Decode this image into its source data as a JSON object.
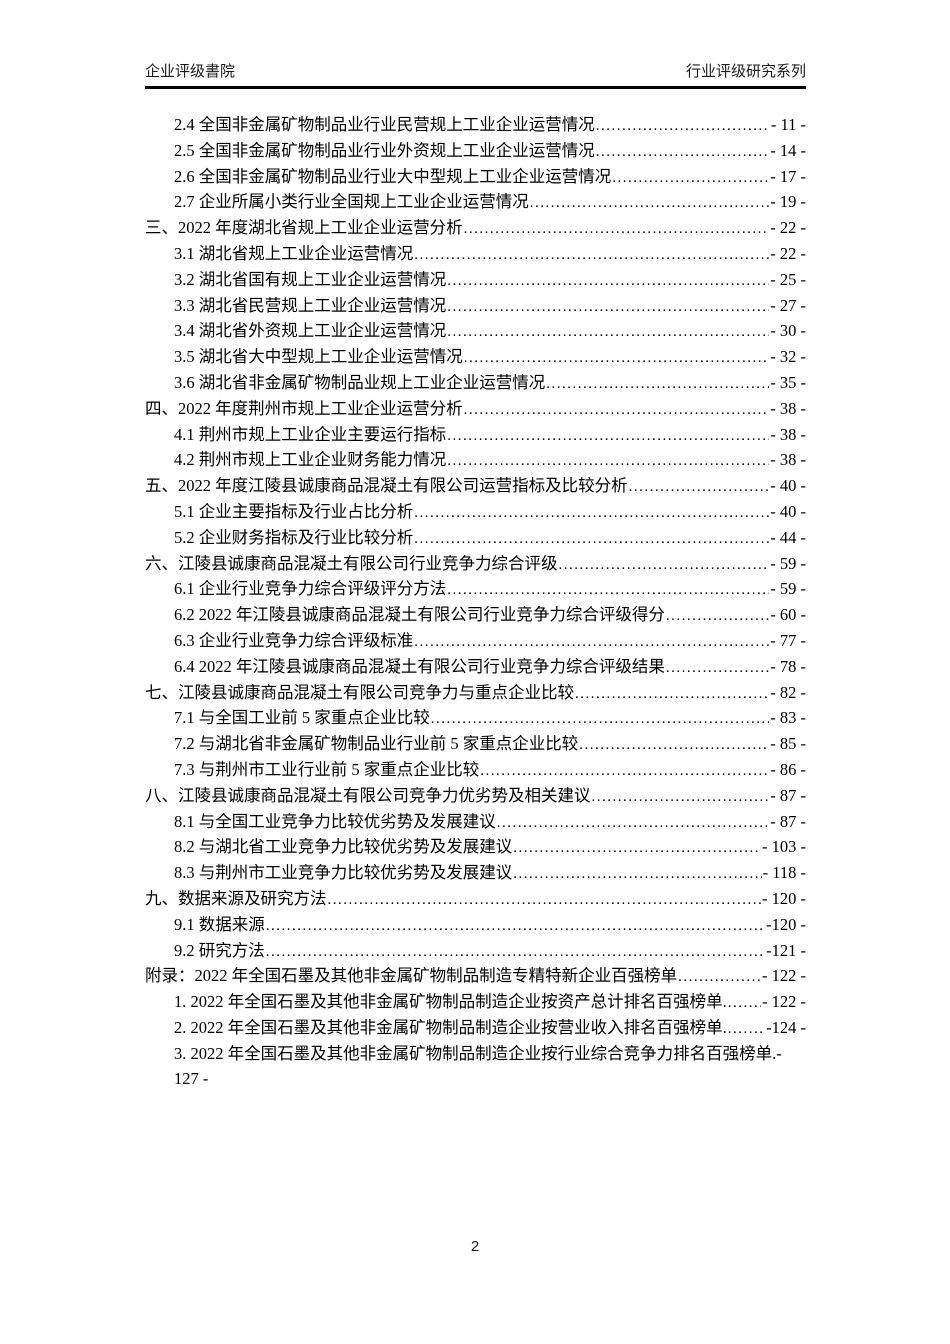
{
  "colors": {
    "background": "#ffffff",
    "text": "#000000",
    "header_rule": "#000000"
  },
  "header": {
    "left": "企业评级書院",
    "right": "行业评级研究系列"
  },
  "footer": {
    "page_number": "2"
  },
  "toc": {
    "entries": [
      {
        "level": 1,
        "text": "2.4 全国非金属矿物制品业行业民营规上工业企业运营情况",
        "page": "- 11 -"
      },
      {
        "level": 1,
        "text": "2.5 全国非金属矿物制品业行业外资规上工业企业运营情况",
        "page": "- 14 -"
      },
      {
        "level": 1,
        "text": "2.6 全国非金属矿物制品业行业大中型规上工业企业运营情况",
        "page": "- 17 -"
      },
      {
        "level": 1,
        "text": "2.7 企业所属小类行业全国规上工业企业运营情况",
        "page": "- 19 -"
      },
      {
        "level": 0,
        "text": "三、2022 年度湖北省规上工业企业运营分析",
        "page": "- 22 -"
      },
      {
        "level": 1,
        "text": "3.1 湖北省规上工业企业运营情况",
        "page": "- 22 -"
      },
      {
        "level": 1,
        "text": "3.2 湖北省国有规上工业企业运营情况",
        "page": "- 25 -"
      },
      {
        "level": 1,
        "text": "3.3 湖北省民营规上工业企业运营情况",
        "page": "- 27 -"
      },
      {
        "level": 1,
        "text": "3.4 湖北省外资规上工业企业运营情况",
        "page": "- 30 -"
      },
      {
        "level": 1,
        "text": "3.5 湖北省大中型规上工业企业运营情况",
        "page": "- 32 -"
      },
      {
        "level": 1,
        "text": "3.6 湖北省非金属矿物制品业规上工业企业运营情况",
        "page": "- 35 -"
      },
      {
        "level": 0,
        "text": "四、2022 年度荆州市规上工业企业运营分析",
        "page": "- 38 -"
      },
      {
        "level": 1,
        "text": "4.1 荆州市规上工业企业主要运行指标",
        "page": "- 38 -"
      },
      {
        "level": 1,
        "text": "4.2 荆州市规上工业企业财务能力情况",
        "page": "- 38 -"
      },
      {
        "level": 0,
        "text": "五、2022 年度江陵县诚康商品混凝土有限公司运营指标及比较分析",
        "page": "- 40 -"
      },
      {
        "level": 1,
        "text": "5.1 企业主要指标及行业占比分析",
        "page": "- 40 -"
      },
      {
        "level": 1,
        "text": "5.2 企业财务指标及行业比较分析",
        "page": "- 44 -"
      },
      {
        "level": 0,
        "text": "六、江陵县诚康商品混凝土有限公司行业竞争力综合评级",
        "page": "- 59 -"
      },
      {
        "level": 1,
        "text": "6.1 企业行业竞争力综合评级评分方法",
        "page": "- 59 -"
      },
      {
        "level": 1,
        "text": "6.2 2022 年江陵县诚康商品混凝土有限公司行业竞争力综合评级得分",
        "page": "- 60 -"
      },
      {
        "level": 1,
        "text": "6.3 企业行业竞争力综合评级标准",
        "page": "- 77 -"
      },
      {
        "level": 1,
        "text": "6.4 2022 年江陵县诚康商品混凝土有限公司行业竞争力综合评级结果",
        "page": "- 78 -"
      },
      {
        "level": 0,
        "text": "七、江陵县诚康商品混凝土有限公司竞争力与重点企业比较",
        "page": "- 82 -"
      },
      {
        "level": 1,
        "text": "7.1 与全国工业前 5 家重点企业比较",
        "page": "- 83 -"
      },
      {
        "level": 1,
        "text": "7.2 与湖北省非金属矿物制品业行业前 5 家重点企业比较",
        "page": "- 85 -"
      },
      {
        "level": 1,
        "text": "7.3 与荆州市工业行业前 5 家重点企业比较",
        "page": "- 86 -"
      },
      {
        "level": 0,
        "text": "八、江陵县诚康商品混凝土有限公司竞争力优劣势及相关建议",
        "page": "- 87 -"
      },
      {
        "level": 1,
        "text": "8.1 与全国工业竞争力比较优劣势及发展建议",
        "page": "- 87 -"
      },
      {
        "level": 1,
        "text": "8.2 与湖北省工业竞争力比较优劣势及发展建议",
        "page": "- 103 -"
      },
      {
        "level": 1,
        "text": "8.3 与荆州市工业竞争力比较优劣势及发展建议",
        "page": "- 118 -"
      },
      {
        "level": 0,
        "text": "九、数据来源及研究方法",
        "page": "- 120 -"
      },
      {
        "level": 1,
        "text": "9.1 数据来源",
        "page": "-120 -"
      },
      {
        "level": 1,
        "text": "9.2 研究方法",
        "page": "-121 -"
      },
      {
        "level": 0,
        "text": "附录：2022 年全国石墨及其他非金属矿物制品制造专精特新企业百强榜单",
        "page": "- 122 -"
      },
      {
        "level": 1,
        "text": "1. 2022 年全国石墨及其他非金属矿物制品制造企业按资产总计排名百强榜单.",
        "page": "- 122 -"
      },
      {
        "level": 1,
        "text": "2. 2022 年全国石墨及其他非金属矿物制品制造企业按营业收入排名百强榜单.",
        "page": "-124 -"
      },
      {
        "level": 1,
        "text": "3. 2022 年全国石墨及其他非金属矿物制品制造企业按行业综合竞争力排名百强榜单.-",
        "page": "",
        "no_leader": true
      },
      {
        "level": 1,
        "text": "127 -",
        "page": "",
        "no_leader": true
      }
    ]
  }
}
